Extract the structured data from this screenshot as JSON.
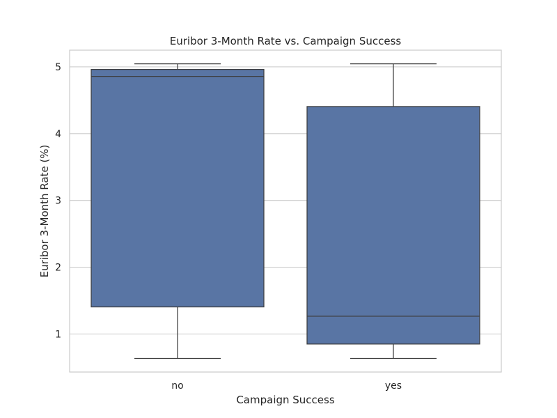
{
  "chart_data": {
    "type": "box",
    "title": "Euribor 3-Month Rate vs. Campaign Success",
    "xlabel": "Campaign Success",
    "ylabel": "Euribor 3-Month Rate (%)",
    "categories": [
      "no",
      "yes"
    ],
    "boxes": [
      {
        "category": "no",
        "whisker_low": 0.634,
        "q1": 1.405,
        "median": 4.857,
        "q3": 4.962,
        "whisker_high": 5.045
      },
      {
        "category": "yes",
        "whisker_low": 0.634,
        "q1": 0.849,
        "median": 1.266,
        "q3": 4.406,
        "whisker_high": 5.045
      }
    ],
    "y_ticks": [
      1,
      2,
      3,
      4,
      5
    ],
    "ylim": [
      0.43,
      5.25
    ],
    "grid": true,
    "box_color": "#5975a4",
    "line_color": "#3d3d3d",
    "grid_color": "#cccccc"
  }
}
